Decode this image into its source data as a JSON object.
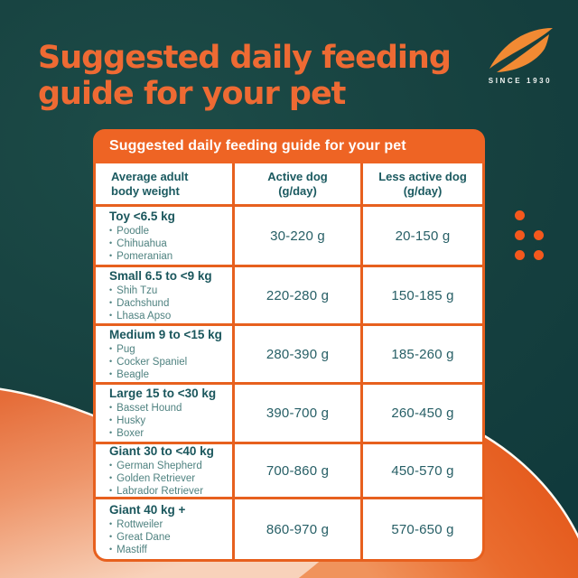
{
  "header": {
    "title_line1": "Suggested daily feeding",
    "title_line2": "guide for your pet"
  },
  "logo": {
    "icon": "leaf-swoosh-icon",
    "tagline": "SINCE 1930"
  },
  "table": {
    "title": "Suggested daily feeding guide for your pet",
    "columns": [
      {
        "line1": "Average adult",
        "line2": "body weight"
      },
      {
        "line1": "Active dog",
        "line2": "(g/day)"
      },
      {
        "line1": "Less active dog",
        "line2": "(g/day)"
      }
    ],
    "rows": [
      {
        "category": "Toy <6.5 kg",
        "breeds": [
          "Poodle",
          "Chihuahua",
          "Pomeranian"
        ],
        "active": "30-220 g",
        "less_active": "20-150 g"
      },
      {
        "category": "Small 6.5 to <9 kg",
        "breeds": [
          "Shih Tzu",
          "Dachshund",
          "Lhasa Apso"
        ],
        "active": "220-280 g",
        "less_active": "150-185 g"
      },
      {
        "category": "Medium 9 to <15 kg",
        "breeds": [
          "Pug",
          "Cocker Spaniel",
          "Beagle"
        ],
        "active": "280-390 g",
        "less_active": "185-260 g"
      },
      {
        "category": "Large 15 to <30 kg",
        "breeds": [
          "Basset Hound",
          "Husky",
          "Boxer"
        ],
        "active": "390-700 g",
        "less_active": "260-450 g"
      },
      {
        "category": "Giant 30 to <40 kg",
        "breeds": [
          "German Shepherd",
          "Golden Retriever",
          "Labrador Retriever"
        ],
        "active": "700-860 g",
        "less_active": "450-570 g"
      },
      {
        "category": "Giant 40 kg +",
        "breeds": [
          "Rottweiler",
          "Great Dane",
          "Mastiff"
        ],
        "active": "860-970 g",
        "less_active": "570-650 g"
      }
    ]
  },
  "chart_data": {
    "type": "table",
    "title": "Suggested daily feeding guide for your pet",
    "columns": [
      "Average adult body weight",
      "Active dog (g/day)",
      "Less active dog (g/day)"
    ],
    "rows": [
      [
        "Toy <6.5 kg (Poodle, Chihuahua, Pomeranian)",
        "30-220 g",
        "20-150 g"
      ],
      [
        "Small 6.5 to <9 kg (Shih Tzu, Dachshund, Lhasa Apso)",
        "220-280 g",
        "150-185 g"
      ],
      [
        "Medium 9 to <15 kg (Pug, Cocker Spaniel, Beagle)",
        "280-390 g",
        "185-260 g"
      ],
      [
        "Large 15 to <30 kg (Basset Hound, Husky, Boxer)",
        "390-700 g",
        "260-450 g"
      ],
      [
        "Giant 30 to <40 kg (German Shepherd, Golden Retriever, Labrador Retriever)",
        "700-860 g",
        "450-570 g"
      ],
      [
        "Giant 40 kg + (Rottweiler, Great Dane, Mastiff)",
        "860-970 g",
        "570-650 g"
      ]
    ]
  },
  "colors": {
    "background_teal": "#16443f",
    "accent_orange": "#ee6a33",
    "table_border_orange": "#e7601e",
    "table_bar_orange": "#ee6424",
    "logo_orange": "#f28a33",
    "dot_orange": "#f4581d",
    "text_teal_dark": "#1a565c",
    "text_teal_light": "#4f8280",
    "blob_peach_light": "#f8d2ba"
  },
  "decor": {
    "dot_count": 5
  }
}
